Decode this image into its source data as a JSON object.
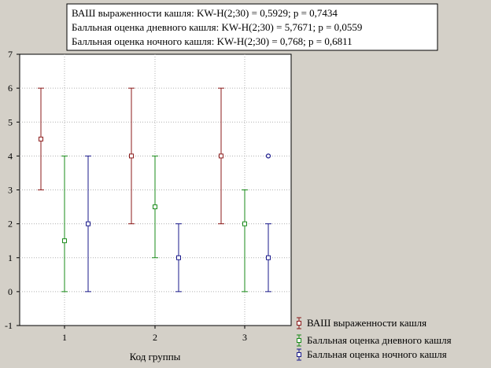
{
  "chart_data": {
    "type": "scatter",
    "title_lines": [
      "ВАШ выраженности кашля:  KW-H(2;30) = 0,5929; p = 0,7434",
      "Балльная оценка дневного кашля:  KW-H(2;30) = 5,7671; p = 0,0559",
      "Балльная оценка ночного кашля:  KW-H(2;30) = 0,768; p = 0,6811"
    ],
    "xlabel": "Код группы",
    "ylabel": "",
    "categories": [
      "1",
      "2",
      "3"
    ],
    "ylim": [
      -1,
      7
    ],
    "yticks": [
      "-1",
      "0",
      "1",
      "2",
      "3",
      "4",
      "5",
      "6",
      "7"
    ],
    "grid": true,
    "legend_position": "bottom-right",
    "series": [
      {
        "name": "ВАШ выраженности кашля",
        "color": "#8b1a1a",
        "points": [
          {
            "x": 1,
            "median": 4.5,
            "low": 3,
            "high": 6
          },
          {
            "x": 2,
            "median": 4,
            "low": 2,
            "high": 6
          },
          {
            "x": 3,
            "median": 4,
            "low": 2,
            "high": 6
          }
        ],
        "outliers": []
      },
      {
        "name": "Балльная оценка дневного кашля",
        "color": "#1a8b1a",
        "points": [
          {
            "x": 1,
            "median": 1.5,
            "low": 0,
            "high": 4
          },
          {
            "x": 2,
            "median": 2.5,
            "low": 1,
            "high": 4
          },
          {
            "x": 3,
            "median": 2,
            "low": 0,
            "high": 3
          }
        ],
        "outliers": []
      },
      {
        "name": "Балльная оценка ночного кашля",
        "color": "#1a1a8b",
        "points": [
          {
            "x": 1,
            "median": 2,
            "low": 0,
            "high": 4
          },
          {
            "x": 2,
            "median": 1,
            "low": 0,
            "high": 2
          },
          {
            "x": 3,
            "median": 1,
            "low": 0,
            "high": 2
          }
        ],
        "outliers": [
          {
            "x": 3,
            "y": 4
          }
        ]
      }
    ]
  }
}
